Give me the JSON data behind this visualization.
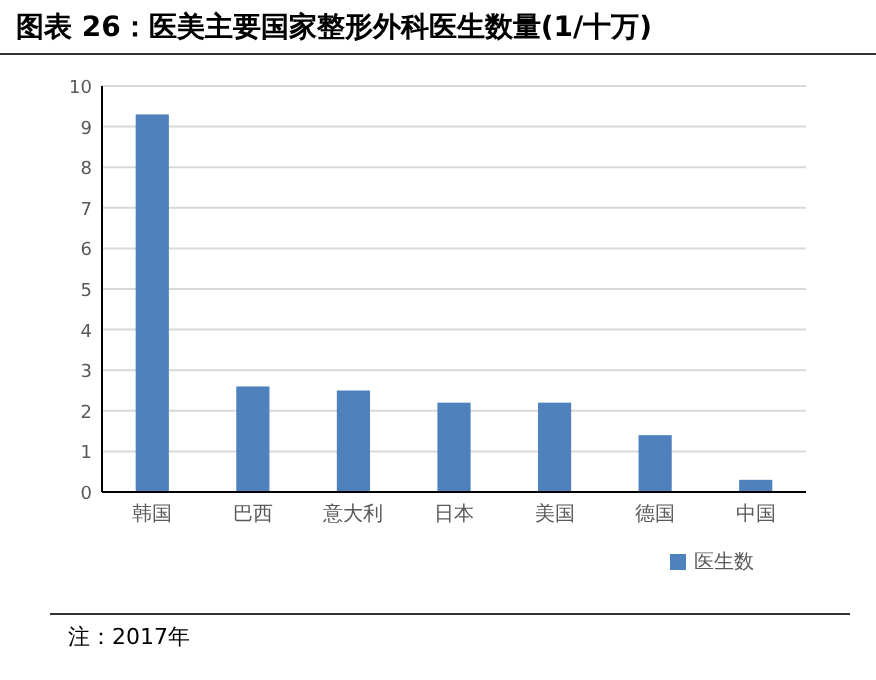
{
  "chart_data": {
    "type": "bar",
    "title": "图表 26：医美主要国家整形外科医生数量(1/十万)",
    "categories": [
      "韩国",
      "巴西",
      "意大利",
      "日本",
      "美国",
      "德国",
      "中国"
    ],
    "series": [
      {
        "name": "医生数",
        "color": "#4f81bd",
        "values": [
          9.3,
          2.6,
          2.5,
          2.2,
          2.2,
          1.4,
          0.3
        ]
      }
    ],
    "ylim": [
      0,
      10
    ],
    "yticks": [
      0,
      1,
      2,
      3,
      4,
      5,
      6,
      7,
      8,
      9,
      10
    ],
    "grid": "y",
    "legend": "bottom right",
    "annotations": [
      "注：2017年"
    ]
  }
}
